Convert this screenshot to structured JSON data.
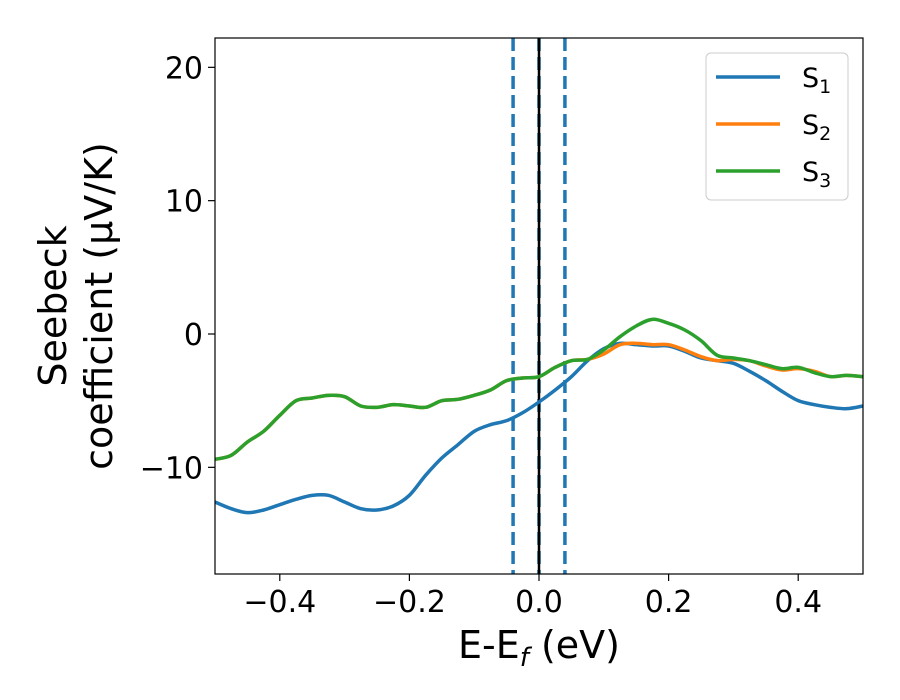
{
  "chart_data": {
    "type": "line",
    "xlabel": {
      "base": "E-E",
      "sub": "f",
      "unit": " (eV)"
    },
    "ylabel": {
      "line1": "Seebeck",
      "line2": "coefficient  (μV/K)"
    },
    "xlim": [
      -0.5,
      0.5
    ],
    "ylim": [
      -18.0,
      22.2
    ],
    "xticks": [
      {
        "value": -0.4,
        "label": "−0.4"
      },
      {
        "value": -0.2,
        "label": "−0.2"
      },
      {
        "value": 0.0,
        "label": "0.0"
      },
      {
        "value": 0.2,
        "label": "0.2"
      },
      {
        "value": 0.4,
        "label": "0.4"
      }
    ],
    "yticks": [
      {
        "value": -10,
        "label": "−10"
      },
      {
        "value": 0,
        "label": "0"
      },
      {
        "value": 10,
        "label": "10"
      },
      {
        "value": 20,
        "label": "20"
      }
    ],
    "legend": {
      "position": "top-right"
    },
    "vlines": [
      {
        "x": -0.04,
        "style": "dashed",
        "color": "#1f77b4"
      },
      {
        "x": 0.04,
        "style": "dashed",
        "color": "#1f77b4"
      },
      {
        "x": 0.0,
        "style": "dashed",
        "color": "#1f77b4"
      },
      {
        "x": 0.0,
        "style": "solid",
        "color": "#000000"
      }
    ],
    "series": [
      {
        "name": "S",
        "sub": "1",
        "color": "#1f77b4",
        "x": [
          -0.5,
          -0.475,
          -0.45,
          -0.425,
          -0.4,
          -0.375,
          -0.35,
          -0.325,
          -0.3,
          -0.275,
          -0.25,
          -0.225,
          -0.2,
          -0.175,
          -0.15,
          -0.125,
          -0.1,
          -0.075,
          -0.05,
          -0.025,
          0.0,
          0.025,
          0.05,
          0.075,
          0.1,
          0.125,
          0.15,
          0.175,
          0.2,
          0.225,
          0.25,
          0.275,
          0.3,
          0.325,
          0.35,
          0.375,
          0.4,
          0.425,
          0.45,
          0.475,
          0.5
        ],
        "y": [
          -12.6,
          -13.1,
          -13.4,
          -13.2,
          -12.8,
          -12.4,
          -12.1,
          -12.1,
          -12.6,
          -13.1,
          -13.2,
          -12.9,
          -12.1,
          -10.6,
          -9.3,
          -8.3,
          -7.3,
          -6.8,
          -6.5,
          -5.9,
          -5.1,
          -4.2,
          -3.2,
          -2.0,
          -1.1,
          -0.7,
          -0.8,
          -0.9,
          -0.9,
          -1.3,
          -1.8,
          -2.0,
          -2.2,
          -2.8,
          -3.5,
          -4.3,
          -5.0,
          -5.3,
          -5.5,
          -5.6,
          -5.4
        ]
      },
      {
        "name": "S",
        "sub": "2",
        "color": "#ff7f0e",
        "x": [
          -0.5,
          -0.475,
          -0.45,
          -0.425,
          -0.4,
          -0.375,
          -0.35,
          -0.325,
          -0.3,
          -0.275,
          -0.25,
          -0.225,
          -0.2,
          -0.175,
          -0.15,
          -0.125,
          -0.1,
          -0.075,
          -0.05,
          -0.025,
          0.0,
          0.025,
          0.05,
          0.075,
          0.1,
          0.125,
          0.15,
          0.175,
          0.2,
          0.225,
          0.25,
          0.275,
          0.3,
          0.325,
          0.35,
          0.375,
          0.4,
          0.425,
          0.45,
          0.475,
          0.5
        ],
        "y": [
          -9.4,
          -9.1,
          -8.1,
          -7.3,
          -6.1,
          -5.0,
          -4.8,
          -4.6,
          -4.7,
          -5.4,
          -5.5,
          -5.3,
          -5.4,
          -5.5,
          -5.0,
          -4.9,
          -4.6,
          -4.2,
          -3.5,
          -3.3,
          -3.2,
          -2.5,
          -2.0,
          -1.9,
          -1.5,
          -0.8,
          -0.7,
          -0.8,
          -0.8,
          -1.2,
          -1.7,
          -2.0,
          -1.9,
          -2.0,
          -2.4,
          -2.7,
          -2.6,
          -2.8,
          -3.2,
          -3.1,
          -3.2
        ]
      },
      {
        "name": "S",
        "sub": "3",
        "color": "#2ca02c",
        "x": [
          -0.5,
          -0.475,
          -0.45,
          -0.425,
          -0.4,
          -0.375,
          -0.35,
          -0.325,
          -0.3,
          -0.275,
          -0.25,
          -0.225,
          -0.2,
          -0.175,
          -0.15,
          -0.125,
          -0.1,
          -0.075,
          -0.05,
          -0.025,
          0.0,
          0.025,
          0.05,
          0.075,
          0.1,
          0.125,
          0.15,
          0.175,
          0.2,
          0.225,
          0.25,
          0.275,
          0.3,
          0.325,
          0.35,
          0.375,
          0.4,
          0.425,
          0.45,
          0.475,
          0.5
        ],
        "y": [
          -9.4,
          -9.1,
          -8.1,
          -7.3,
          -6.1,
          -5.0,
          -4.8,
          -4.6,
          -4.7,
          -5.4,
          -5.5,
          -5.3,
          -5.4,
          -5.5,
          -5.0,
          -4.9,
          -4.6,
          -4.2,
          -3.5,
          -3.3,
          -3.2,
          -2.5,
          -2.0,
          -1.9,
          -1.2,
          -0.2,
          0.6,
          1.1,
          0.8,
          0.3,
          -0.5,
          -1.6,
          -1.8,
          -2.0,
          -2.3,
          -2.6,
          -2.5,
          -2.9,
          -3.2,
          -3.1,
          -3.2
        ]
      }
    ]
  }
}
